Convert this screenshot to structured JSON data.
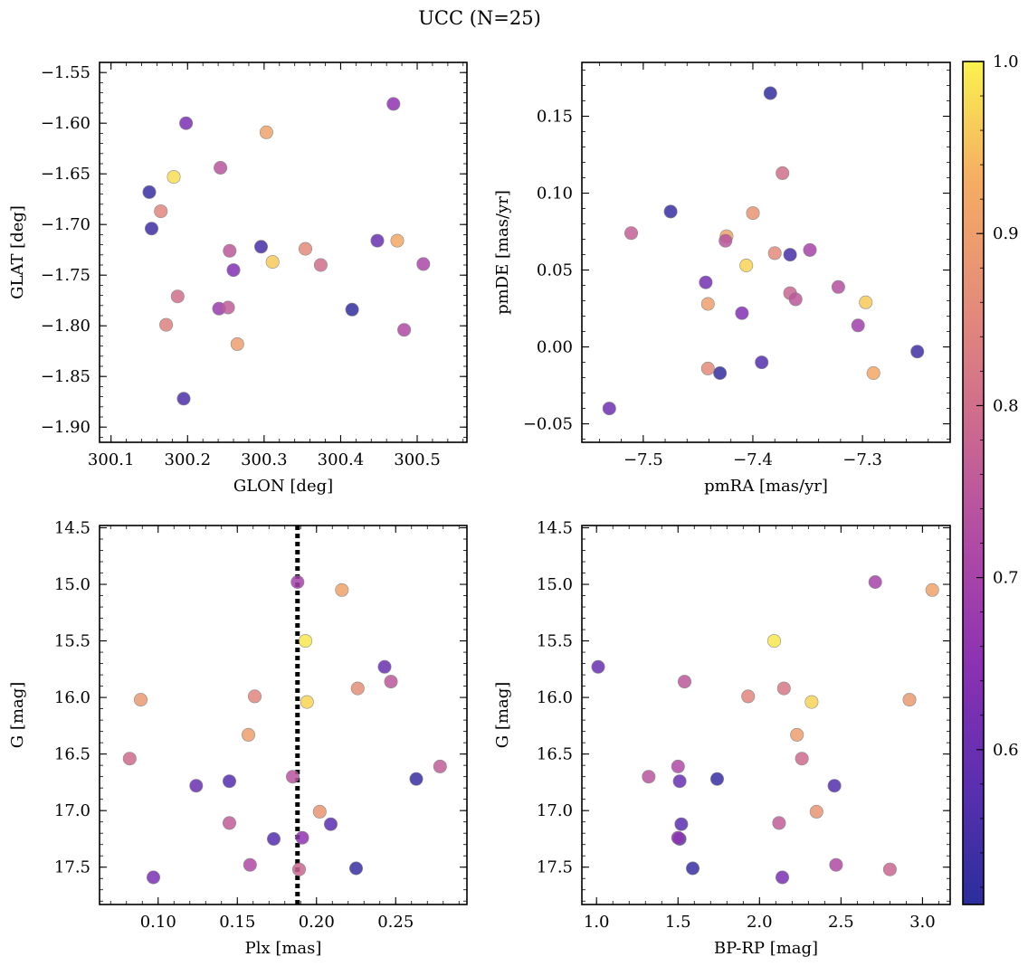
{
  "suptitle": "UCC (N=25)",
  "colormap": {
    "name": "plasma",
    "stops": [
      "#2b2e9c",
      "#5a2fb0",
      "#8a31b3",
      "#b04ba5",
      "#cd6a8e",
      "#e48b7a",
      "#f5ad63",
      "#faf24e"
    ],
    "range": [
      0.51,
      1.0
    ],
    "ticks": [
      0.6,
      0.7,
      0.8,
      0.9,
      1.0
    ],
    "tick_labels": [
      "0.6",
      "0.7",
      "0.8",
      "0.9",
      "1.0"
    ]
  },
  "chart_data": [
    {
      "type": "scatter",
      "xlabel": "GLON [deg]",
      "ylabel": "GLAT [deg]",
      "xlim": [
        300.085,
        300.565
      ],
      "ylim": [
        -1.915,
        -1.54
      ],
      "inverted_y": false,
      "xticks": [
        300.1,
        300.2,
        300.3,
        300.4,
        300.5
      ],
      "xtick_labels": [
        "300.1",
        "300.2",
        "300.3",
        "300.4",
        "300.5"
      ],
      "yticks": [
        -1.9,
        -1.85,
        -1.8,
        -1.75,
        -1.7,
        -1.65,
        -1.6,
        -1.55
      ],
      "ytick_labels": [
        "−1.90",
        "−1.85",
        "−1.80",
        "−1.75",
        "−1.70",
        "−1.65",
        "−1.60",
        "−1.55"
      ],
      "x": [
        300.15,
        300.153,
        300.165,
        300.172,
        300.182,
        300.187,
        300.195,
        300.198,
        300.241,
        300.243,
        300.253,
        300.255,
        300.26,
        300.265,
        300.296,
        300.303,
        300.311,
        300.354,
        300.374,
        300.415,
        300.448,
        300.469,
        300.474,
        300.483,
        300.508
      ],
      "y": [
        -1.668,
        -1.704,
        -1.687,
        -1.799,
        -1.653,
        -1.771,
        -1.872,
        -1.6,
        -1.783,
        -1.644,
        -1.782,
        -1.726,
        -1.745,
        -1.818,
        -1.722,
        -1.609,
        -1.737,
        -1.724,
        -1.74,
        -1.784,
        -1.716,
        -1.581,
        -1.716,
        -1.804,
        -1.739
      ],
      "c": [
        0.53,
        0.54,
        0.85,
        0.84,
        0.98,
        0.8,
        0.56,
        0.63,
        0.68,
        0.74,
        0.76,
        0.75,
        0.64,
        0.9,
        0.55,
        0.91,
        0.96,
        0.86,
        0.8,
        0.52,
        0.6,
        0.66,
        0.92,
        0.72,
        0.71
      ]
    },
    {
      "type": "scatter",
      "xlabel": "pmRA [mas/yr]",
      "ylabel": "pmDE [mas/yr]",
      "xlim": [
        -7.556,
        -7.22
      ],
      "ylim": [
        -0.062,
        0.185
      ],
      "inverted_y": false,
      "xticks": [
        -7.5,
        -7.4,
        -7.3
      ],
      "xtick_labels": [
        "−7.5",
        "−7.4",
        "−7.3"
      ],
      "yticks": [
        -0.05,
        0.0,
        0.05,
        0.1,
        0.15
      ],
      "ytick_labels": [
        "−0.05",
        "0.00",
        "0.05",
        "0.10",
        "0.15"
      ],
      "x": [
        -7.384,
        -7.373,
        -7.475,
        -7.4,
        -7.511,
        -7.424,
        -7.425,
        -7.366,
        -7.38,
        -7.348,
        -7.406,
        -7.443,
        -7.366,
        -7.322,
        -7.361,
        -7.441,
        -7.41,
        -7.297,
        -7.304,
        -7.43,
        -7.392,
        -7.441,
        -7.29,
        -7.25,
        -7.531
      ],
      "y": [
        0.165,
        0.113,
        0.088,
        0.087,
        0.074,
        0.072,
        0.069,
        0.06,
        0.061,
        0.063,
        0.053,
        0.042,
        0.035,
        0.039,
        0.031,
        0.028,
        0.022,
        0.029,
        0.014,
        -0.017,
        -0.01,
        -0.014,
        -0.017,
        -0.003,
        -0.04
      ],
      "c": [
        0.52,
        0.8,
        0.53,
        0.88,
        0.77,
        0.91,
        0.74,
        0.55,
        0.86,
        0.7,
        0.97,
        0.62,
        0.78,
        0.73,
        0.75,
        0.9,
        0.64,
        0.96,
        0.69,
        0.52,
        0.57,
        0.86,
        0.92,
        0.54,
        0.61
      ]
    },
    {
      "type": "scatter",
      "xlabel": "Plx [mas]",
      "ylabel": "G [mag]",
      "xlim": [
        0.063,
        0.295
      ],
      "ylim": [
        17.83,
        14.48
      ],
      "inverted_y": true,
      "vline": 0.188,
      "xticks": [
        0.1,
        0.15,
        0.2,
        0.25
      ],
      "xtick_labels": [
        "0.10",
        "0.15",
        "0.20",
        "0.25"
      ],
      "yticks": [
        14.5,
        15.0,
        15.5,
        16.0,
        16.5,
        17.0,
        17.5
      ],
      "ytick_labels": [
        "14.5",
        "15.0",
        "15.5",
        "16.0",
        "16.5",
        "17.0",
        "17.5"
      ],
      "x": [
        0.188,
        0.216,
        0.193,
        0.243,
        0.247,
        0.089,
        0.161,
        0.226,
        0.194,
        0.157,
        0.082,
        0.278,
        0.124,
        0.145,
        0.263,
        0.185,
        0.202,
        0.145,
        0.209,
        0.173,
        0.191,
        0.158,
        0.097,
        0.189,
        0.225
      ],
      "y": [
        14.98,
        15.05,
        15.5,
        15.73,
        15.86,
        16.02,
        15.99,
        15.92,
        16.04,
        16.33,
        16.54,
        16.61,
        16.78,
        16.74,
        16.72,
        16.7,
        17.01,
        17.11,
        17.12,
        17.25,
        17.24,
        17.48,
        17.59,
        17.52,
        17.51
      ],
      "c": [
        0.7,
        0.91,
        0.99,
        0.6,
        0.75,
        0.89,
        0.85,
        0.87,
        0.97,
        0.9,
        0.79,
        0.76,
        0.6,
        0.57,
        0.53,
        0.74,
        0.88,
        0.76,
        0.58,
        0.57,
        0.66,
        0.72,
        0.63,
        0.78,
        0.53
      ]
    },
    {
      "type": "scatter",
      "xlabel": "BP-RP [mag]",
      "ylabel": "G [mag]",
      "xlim": [
        0.91,
        3.17
      ],
      "ylim": [
        17.83,
        14.48
      ],
      "inverted_y": true,
      "xticks": [
        1.0,
        1.5,
        2.0,
        2.5,
        3.0
      ],
      "xtick_labels": [
        "1.0",
        "1.5",
        "2.0",
        "2.5",
        "3.0"
      ],
      "yticks": [
        14.5,
        15.0,
        15.5,
        16.0,
        16.5,
        17.0,
        17.5
      ],
      "ytick_labels": [
        "14.5",
        "15.0",
        "15.5",
        "16.0",
        "16.5",
        "17.0",
        "17.5"
      ],
      "x": [
        2.71,
        3.06,
        2.09,
        1.01,
        1.54,
        1.93,
        2.15,
        2.32,
        2.92,
        2.23,
        1.32,
        1.5,
        1.51,
        1.74,
        2.26,
        2.46,
        2.35,
        2.12,
        1.52,
        1.51,
        1.5,
        2.47,
        1.59,
        2.14,
        2.8
      ],
      "y": [
        14.98,
        15.05,
        15.5,
        15.73,
        15.86,
        15.99,
        15.92,
        16.04,
        16.02,
        16.33,
        16.7,
        16.61,
        16.74,
        16.72,
        16.54,
        16.78,
        17.01,
        17.11,
        17.12,
        17.25,
        17.24,
        17.48,
        17.51,
        17.59,
        17.52
      ],
      "c": [
        0.7,
        0.91,
        0.99,
        0.6,
        0.75,
        0.85,
        0.82,
        0.97,
        0.89,
        0.9,
        0.74,
        0.72,
        0.6,
        0.53,
        0.79,
        0.57,
        0.88,
        0.76,
        0.58,
        0.57,
        0.66,
        0.72,
        0.53,
        0.63,
        0.78
      ]
    }
  ]
}
